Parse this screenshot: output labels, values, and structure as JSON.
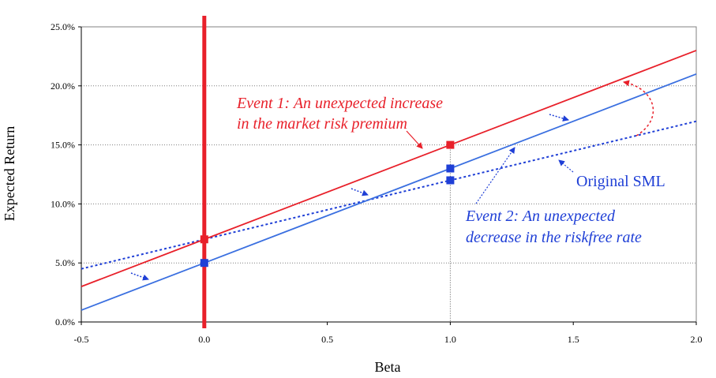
{
  "chart_data": {
    "type": "line",
    "title": "",
    "xlabel": "Beta",
    "ylabel": "Expected Return",
    "xlim": [
      -0.5,
      2.0
    ],
    "ylim": [
      0.0,
      25.0
    ],
    "x_ticks": [
      -0.5,
      0.0,
      0.5,
      1.0,
      1.5,
      2.0
    ],
    "x_tick_labels": [
      "-0.5",
      "0.0",
      "0.5",
      "1.0",
      "1.5",
      "2.0"
    ],
    "y_ticks": [
      0,
      5,
      10,
      15,
      20,
      25
    ],
    "y_tick_labels": [
      "0.0%",
      "5.0%",
      "10.0%",
      "15.0%",
      "20.0%",
      "25.0%"
    ],
    "grid": "horizontal dotted",
    "series": [
      {
        "name": "Original SML",
        "style": "dotted",
        "color": "#1f3fd6",
        "x": [
          -0.5,
          2.0
        ],
        "y": [
          4.5,
          17.0
        ]
      },
      {
        "style": "solid",
        "color": "#e8202a",
        "x": [
          -0.5,
          2.0
        ],
        "y": [
          3.0,
          23.0
        ]
      },
      {
        "style": "solid",
        "color": "#3a6fe0",
        "x": [
          -0.5,
          2.0
        ],
        "y": [
          1.0,
          21.0
        ]
      }
    ],
    "markers": [
      {
        "x": 0.0,
        "y": 7.0,
        "color": "#e8202a"
      },
      {
        "x": 1.0,
        "y": 15.0,
        "color": "#e8202a"
      },
      {
        "x": 0.0,
        "y": 5.0,
        "color": "#1f3fd6"
      },
      {
        "x": 1.0,
        "y": 13.0,
        "color": "#1f3fd6"
      },
      {
        "x": 1.0,
        "y": 12.0,
        "color": "#1f3fd6"
      }
    ],
    "annotations": [
      {
        "lines": [
          "Event 1: An unexpected increase",
          "in the market risk premium"
        ],
        "color": "#e8202a"
      },
      {
        "lines": [
          "Event 2: An unexpected",
          "decrease in the riskfree rate"
        ],
        "color": "#1f3fd6"
      },
      {
        "lines": [
          "Original SML"
        ],
        "color": "#1f3fd6"
      }
    ],
    "colors": {
      "red": "#e8202a",
      "blue": "#3a6fe0",
      "dark_blue": "#1f3fd6",
      "grid": "#7f7f7f"
    }
  }
}
